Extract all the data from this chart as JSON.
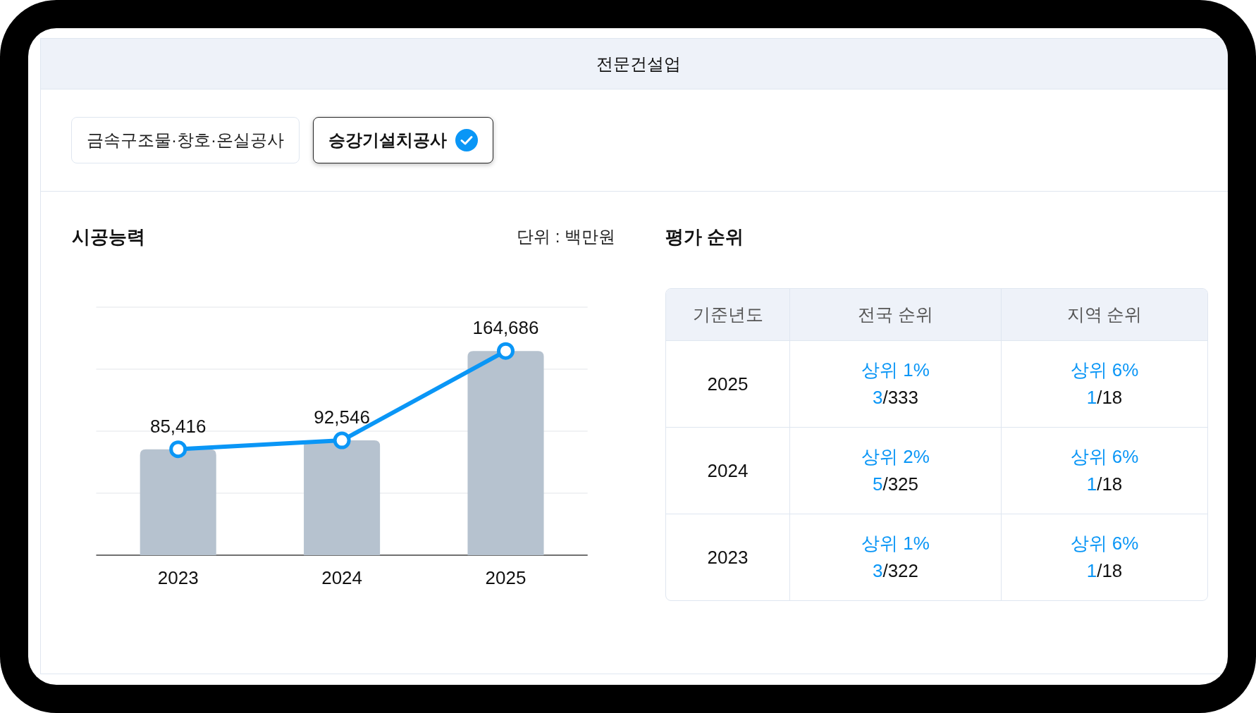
{
  "chart_data": [
    {
      "type": "other",
      "title": "전문건설업",
      "annotations": [
        "금속구조물·창호·온실공사",
        "승강기설치공사"
      ]
    },
    {
      "type": "bar",
      "title": "시공능력",
      "annotations": [
        "단위 : 백만원"
      ],
      "categories": [
        "2023",
        "2024",
        "2025"
      ],
      "series": [
        {
          "type": "bar",
          "color": "#b6c2cf",
          "values": [
            85416,
            92546,
            164686
          ]
        },
        {
          "type": "line",
          "color": "#0a96f6",
          "values": [
            85416,
            92546,
            164686
          ],
          "value_labels": [
            "85,416",
            "92,546",
            "164,686"
          ]
        }
      ],
      "grid": "y",
      "tick_labels": "x",
      "marker": "circle"
    },
    {
      "type": "other",
      "title": "평가 순위",
      "categories": [
        "기준년도",
        "전국 순위",
        "지역 순위"
      ],
      "y_categories": [
        "2025",
        "2024",
        "2023"
      ],
      "annotations": [
        "상위 1%\n3/333",
        "상위 6%\n1/18",
        "상위 2%\n5/325",
        "상위 6%\n1/18",
        "상위 1%\n3/322",
        "상위 6%\n1/18"
      ]
    }
  ]
}
